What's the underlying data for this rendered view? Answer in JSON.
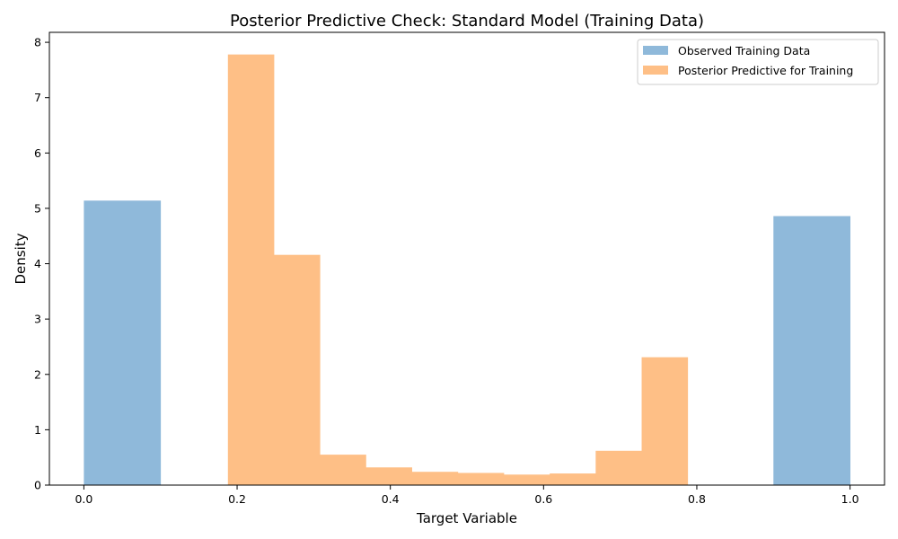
{
  "chart_data": {
    "type": "bar",
    "title": "Posterior Predictive Check: Standard Model (Training Data)",
    "xlabel": "Target Variable",
    "ylabel": "Density",
    "xlim": [
      -0.045,
      1.045
    ],
    "ylim": [
      0,
      8.18
    ],
    "xticks": [
      0.0,
      0.2,
      0.4,
      0.6,
      0.8,
      1.0
    ],
    "xtick_labels": [
      "0.0",
      "0.2",
      "0.4",
      "0.6",
      "0.8",
      "1.0"
    ],
    "yticks": [
      0,
      1,
      2,
      3,
      4,
      5,
      6,
      7,
      8
    ],
    "ytick_labels": [
      "0",
      "1",
      "2",
      "3",
      "4",
      "5",
      "6",
      "7",
      "8"
    ],
    "grid": false,
    "legend_position": "top-right",
    "series": [
      {
        "name": "Observed Training Data",
        "color": "#8fb9da",
        "bins": [
          {
            "x0": 0.0,
            "x1": 0.1,
            "value": 5.14
          },
          {
            "x0": 0.9,
            "x1": 1.0,
            "value": 4.86
          }
        ]
      },
      {
        "name": "Posterior Predictive for Training",
        "color": "#febf86",
        "bins": [
          {
            "x0": 0.188,
            "x1": 0.248,
            "value": 7.78
          },
          {
            "x0": 0.248,
            "x1": 0.308,
            "value": 4.16
          },
          {
            "x0": 0.308,
            "x1": 0.368,
            "value": 0.55
          },
          {
            "x0": 0.368,
            "x1": 0.428,
            "value": 0.32
          },
          {
            "x0": 0.428,
            "x1": 0.488,
            "value": 0.24
          },
          {
            "x0": 0.488,
            "x1": 0.548,
            "value": 0.22
          },
          {
            "x0": 0.548,
            "x1": 0.608,
            "value": 0.19
          },
          {
            "x0": 0.608,
            "x1": 0.668,
            "value": 0.21
          },
          {
            "x0": 0.668,
            "x1": 0.728,
            "value": 0.62
          },
          {
            "x0": 0.728,
            "x1": 0.788,
            "value": 2.31
          }
        ]
      }
    ]
  }
}
